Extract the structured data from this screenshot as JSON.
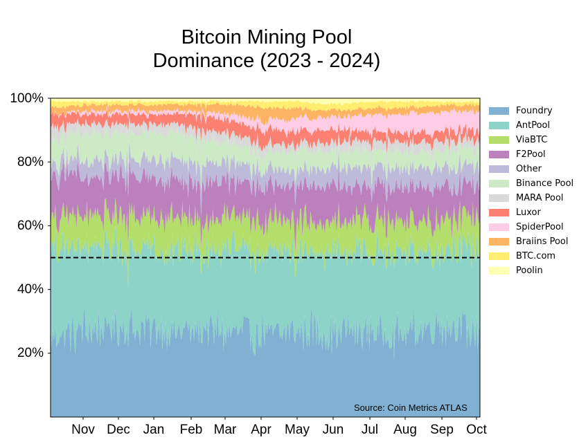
{
  "chart_data": {
    "type": "area",
    "stacked": true,
    "normalized_percent": true,
    "title_lines": [
      "Bitcoin Mining Pool",
      "Dominance (2023 - 2024)"
    ],
    "source_note": "Source: Coin Metrics ATLAS",
    "x_ticks": [
      "Nov",
      "Dec",
      "Jan",
      "Feb",
      "Mar",
      "Apr",
      "May",
      "Jun",
      "Jul",
      "Aug",
      "Sep",
      "Oct"
    ],
    "y_ticks": [
      "20%",
      "40%",
      "60%",
      "80%",
      "100%"
    ],
    "ylim": [
      0,
      100
    ],
    "reference_line": {
      "y": 50,
      "style": "dashed",
      "color": "#000000"
    },
    "legend_position": "outside-right",
    "x_range": {
      "start": "2023-10-05",
      "end": "2024-10-05"
    },
    "series_order": [
      "Foundry",
      "AntPool",
      "ViaBTC",
      "F2Pool",
      "Other",
      "Binance Pool",
      "MARA Pool",
      "Luxor",
      "SpiderPool",
      "Braiins Pool",
      "BTC.com",
      "Poolin"
    ],
    "series": [
      {
        "name": "Foundry",
        "color": "#80b1d3",
        "values": [
          26,
          27,
          29,
          27,
          27,
          27,
          26,
          27,
          27,
          27,
          27,
          29,
          27
        ]
      },
      {
        "name": "AntPool",
        "color": "#8dd3c7",
        "values": [
          27,
          27,
          25,
          26,
          25,
          26,
          25,
          25,
          25,
          25,
          25,
          25,
          25
        ]
      },
      {
        "name": "ViaBTC",
        "color": "#b3de69",
        "values": [
          9,
          10,
          10,
          10,
          10,
          10,
          10,
          10,
          9,
          10,
          9,
          9,
          9
        ]
      },
      {
        "name": "F2Pool",
        "color": "#bc80bd",
        "values": [
          13,
          12,
          12,
          12,
          12,
          11,
          11,
          11,
          11,
          11,
          11,
          10,
          10
        ]
      },
      {
        "name": "Other",
        "color": "#bebada",
        "values": [
          4,
          5,
          5,
          6,
          6,
          6,
          5,
          5,
          6,
          6,
          6,
          6,
          6
        ]
      },
      {
        "name": "Binance Pool",
        "color": "#ccebc5",
        "values": [
          8,
          8,
          8,
          8,
          8,
          6,
          5,
          6,
          5,
          5,
          5,
          5,
          5
        ]
      },
      {
        "name": "MARA Pool",
        "color": "#d9d9d9",
        "values": [
          4,
          3,
          3,
          3,
          3,
          3,
          3,
          2,
          3,
          3,
          3,
          3,
          3
        ]
      },
      {
        "name": "Luxor",
        "color": "#fb8072",
        "values": [
          4,
          3,
          3,
          3,
          4,
          4,
          5,
          4,
          4,
          3,
          3,
          3,
          3
        ]
      },
      {
        "name": "SpiderPool",
        "color": "#fccde5",
        "values": [
          0,
          1,
          1,
          1,
          1,
          2,
          3,
          4,
          4,
          5,
          6,
          6,
          6
        ]
      },
      {
        "name": "Braiins Pool",
        "color": "#fdb462",
        "values": [
          2,
          2,
          2,
          2,
          2,
          3,
          4,
          3,
          2,
          2,
          2,
          2,
          2
        ]
      },
      {
        "name": "BTC.com",
        "color": "#ffed6f",
        "values": [
          2,
          1,
          1,
          1,
          1,
          1,
          2,
          2,
          2,
          2,
          2,
          1,
          1
        ]
      },
      {
        "name": "Poolin",
        "color": "#ffffb3",
        "values": [
          1,
          1,
          1,
          1,
          1,
          1,
          1,
          1,
          2,
          1,
          1,
          1,
          1
        ]
      }
    ]
  }
}
